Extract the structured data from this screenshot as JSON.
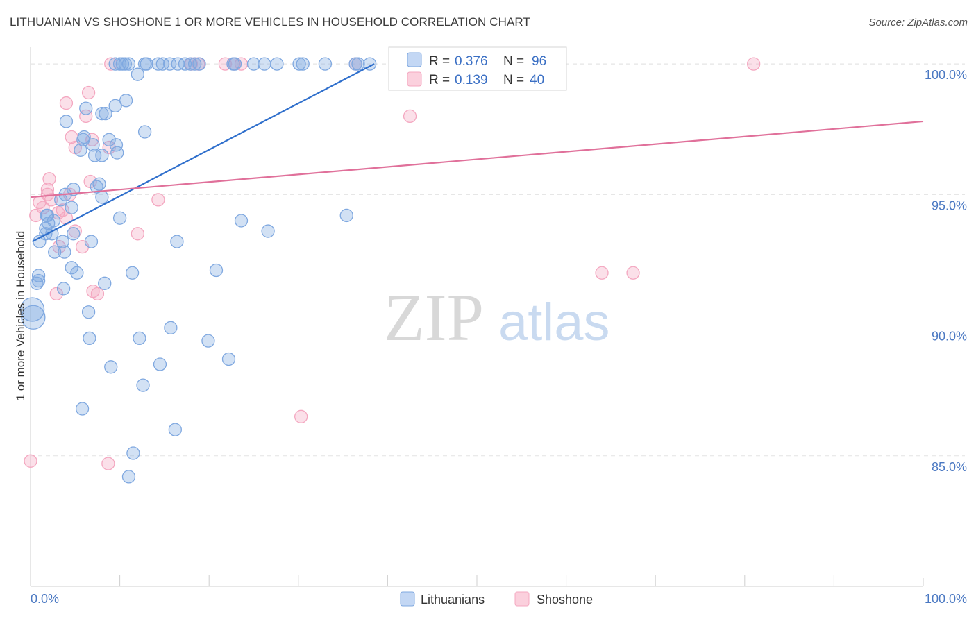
{
  "title": "LITHUANIAN VS SHOSHONE 1 OR MORE VEHICLES IN HOUSEHOLD CORRELATION CHART",
  "source": "Source: ZipAtlas.com",
  "watermark": {
    "zip": "ZIP",
    "atlas": "atlas"
  },
  "chart_data": {
    "type": "scatter",
    "xlabel": "",
    "ylabel": "1 or more Vehicles in Household",
    "xlim": [
      0,
      100
    ],
    "ylim": [
      80.0,
      100.8
    ],
    "x_tick_labels": [
      "0.0%",
      "100.0%"
    ],
    "y_ticks": [
      85,
      90,
      95,
      100
    ],
    "y_tick_labels": [
      "85.0%",
      "90.0%",
      "95.0%",
      "100.0%"
    ],
    "grid": true,
    "legend": [
      {
        "r_label": "R =",
        "r_value": "0.376",
        "n_label": "N =",
        "n_value": "96"
      },
      {
        "r_label": "R =",
        "r_value": "0.139",
        "n_label": "N =",
        "n_value": "40"
      }
    ],
    "series": [
      {
        "name": "Lithuanians",
        "color": "#7fa8e0",
        "line_color": "#2f6fcc",
        "trend": {
          "x": [
            0.2,
            38.5
          ],
          "y": [
            93.2,
            100.0
          ]
        },
        "points": [
          [
            9.5,
            100
          ],
          [
            10.0,
            100
          ],
          [
            10.3,
            100
          ],
          [
            10.6,
            100
          ],
          [
            11.0,
            100
          ],
          [
            12.8,
            100
          ],
          [
            13.0,
            100
          ],
          [
            14.3,
            100
          ],
          [
            14.8,
            100
          ],
          [
            15.6,
            100
          ],
          [
            16.5,
            100
          ],
          [
            17.3,
            100
          ],
          [
            17.9,
            100
          ],
          [
            18.4,
            100
          ],
          [
            18.9,
            100
          ],
          [
            22.7,
            100
          ],
          [
            22.9,
            100
          ],
          [
            25.0,
            100
          ],
          [
            26.2,
            100
          ],
          [
            27.6,
            100
          ],
          [
            30.1,
            100
          ],
          [
            30.5,
            100
          ],
          [
            33.0,
            100
          ],
          [
            36.4,
            100
          ],
          [
            36.7,
            100
          ],
          [
            38.0,
            100
          ],
          [
            12.0,
            99.6
          ],
          [
            10.7,
            98.6
          ],
          [
            9.5,
            98.4
          ],
          [
            6.2,
            98.3
          ],
          [
            8.4,
            98.1
          ],
          [
            8.0,
            98.1
          ],
          [
            4.0,
            97.8
          ],
          [
            12.8,
            97.4
          ],
          [
            6.0,
            97.2
          ],
          [
            5.9,
            97.1
          ],
          [
            8.8,
            97.1
          ],
          [
            7.0,
            96.9
          ],
          [
            9.6,
            96.9
          ],
          [
            5.6,
            96.7
          ],
          [
            9.7,
            96.6
          ],
          [
            7.2,
            96.5
          ],
          [
            8.0,
            96.5
          ],
          [
            7.7,
            95.4
          ],
          [
            7.4,
            95.3
          ],
          [
            4.8,
            95.2
          ],
          [
            3.9,
            95.0
          ],
          [
            8.0,
            94.9
          ],
          [
            3.4,
            94.8
          ],
          [
            4.6,
            94.5
          ],
          [
            1.9,
            94.2
          ],
          [
            1.8,
            94.2
          ],
          [
            10.0,
            94.1
          ],
          [
            2.6,
            94.0
          ],
          [
            2.0,
            93.9
          ],
          [
            23.6,
            94.0
          ],
          [
            35.4,
            94.2
          ],
          [
            1.7,
            93.7
          ],
          [
            1.7,
            93.5
          ],
          [
            2.4,
            93.5
          ],
          [
            4.8,
            93.5
          ],
          [
            26.6,
            93.6
          ],
          [
            1.0,
            93.2
          ],
          [
            3.6,
            93.2
          ],
          [
            6.8,
            93.2
          ],
          [
            16.4,
            93.2
          ],
          [
            2.7,
            92.8
          ],
          [
            3.8,
            92.8
          ],
          [
            4.6,
            92.2
          ],
          [
            5.2,
            92.0
          ],
          [
            11.4,
            92.0
          ],
          [
            20.8,
            92.1
          ],
          [
            0.9,
            91.9
          ],
          [
            0.9,
            91.7
          ],
          [
            0.7,
            91.6
          ],
          [
            8.3,
            91.6
          ],
          [
            3.7,
            91.4
          ],
          [
            0.2,
            90.6
          ],
          [
            0.3,
            90.3
          ],
          [
            6.5,
            90.5
          ],
          [
            15.7,
            89.9
          ],
          [
            6.6,
            89.5
          ],
          [
            12.2,
            89.5
          ],
          [
            19.9,
            89.4
          ],
          [
            22.2,
            88.7
          ],
          [
            14.5,
            88.5
          ],
          [
            9.0,
            88.4
          ],
          [
            12.6,
            87.7
          ],
          [
            5.8,
            86.8
          ],
          [
            16.2,
            86.0
          ],
          [
            11.5,
            85.1
          ],
          [
            11.0,
            84.2
          ]
        ],
        "big_points": [
          [
            0.2,
            90.6
          ],
          [
            0.3,
            90.3
          ]
        ]
      },
      {
        "name": "Shoshone",
        "color": "#f4a7c0",
        "line_color": "#e0709a",
        "trend": {
          "x": [
            0.0,
            100.0
          ],
          "y": [
            94.9,
            97.8
          ]
        },
        "points": [
          [
            9.0,
            100
          ],
          [
            18.0,
            100
          ],
          [
            18.8,
            100
          ],
          [
            21.8,
            100
          ],
          [
            22.8,
            100
          ],
          [
            23.6,
            100
          ],
          [
            36.4,
            100
          ],
          [
            81.0,
            100
          ],
          [
            4.0,
            98.5
          ],
          [
            6.5,
            98.9
          ],
          [
            6.2,
            98.0
          ],
          [
            42.5,
            98.0
          ],
          [
            4.6,
            97.2
          ],
          [
            6.9,
            97.1
          ],
          [
            5.0,
            96.8
          ],
          [
            8.8,
            96.8
          ],
          [
            2.1,
            95.6
          ],
          [
            6.7,
            95.5
          ],
          [
            1.9,
            95.2
          ],
          [
            1.9,
            95.0
          ],
          [
            4.4,
            95.0
          ],
          [
            2.3,
            94.8
          ],
          [
            14.3,
            94.8
          ],
          [
            1.0,
            94.7
          ],
          [
            1.4,
            94.5
          ],
          [
            3.1,
            94.3
          ],
          [
            3.6,
            94.4
          ],
          [
            0.6,
            94.2
          ],
          [
            4.0,
            94.1
          ],
          [
            12.0,
            93.5
          ],
          [
            5.0,
            93.6
          ],
          [
            3.2,
            93.0
          ],
          [
            5.8,
            93.0
          ],
          [
            64.0,
            92.0
          ],
          [
            67.5,
            92.0
          ],
          [
            7.0,
            91.3
          ],
          [
            7.5,
            91.2
          ],
          [
            2.9,
            91.2
          ],
          [
            30.3,
            86.5
          ],
          [
            0.0,
            84.8
          ],
          [
            8.7,
            84.7
          ]
        ]
      }
    ]
  },
  "bottom_legend": [
    {
      "label": "Lithuanians",
      "color": "#7fa8e0"
    },
    {
      "label": "Shoshone",
      "color": "#f4a7c0"
    }
  ]
}
